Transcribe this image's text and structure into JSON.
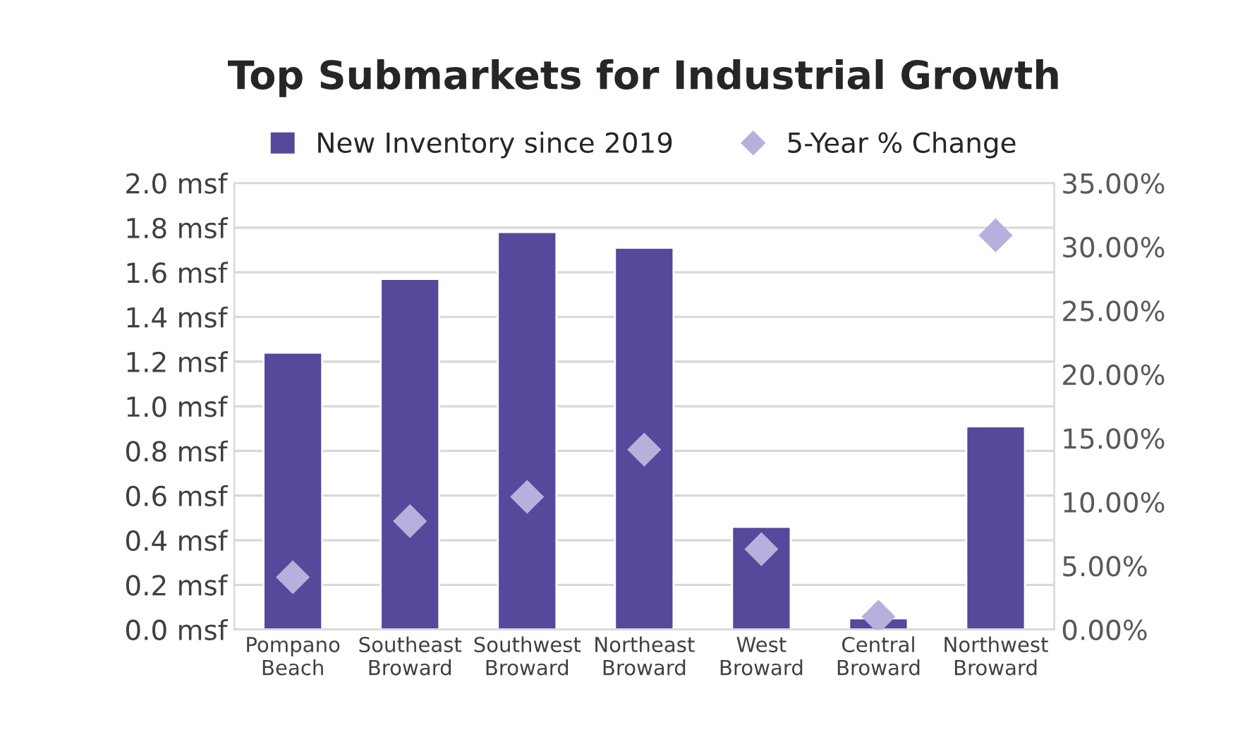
{
  "chart_data": {
    "type": "bar",
    "title": "Top Submarkets for Industrial Growth",
    "categories": [
      "Pompano\nBeach",
      "Southeast\nBroward",
      "Southwest\nBroward",
      "Northeast\nBroward",
      "West\nBroward",
      "Central\nBroward",
      "Northwest\nBroward"
    ],
    "series": [
      {
        "name": "New Inventory since 2019",
        "color": "#55499c",
        "values": [
          1.24,
          1.57,
          1.78,
          1.71,
          0.46,
          0.05,
          0.91
        ]
      },
      {
        "name": "5-Year % Change",
        "type": "scatter",
        "axis": "y2",
        "marker": "diamond",
        "color": "#b8b0dc",
        "values": [
          4.1,
          8.5,
          10.4,
          14.1,
          6.3,
          1.0,
          30.9
        ]
      }
    ],
    "ylim": [
      0,
      2
    ],
    "yticks": [
      {
        "value": 0,
        "label": "0.0 msf"
      },
      {
        "value": 0.2,
        "label": "0.2 msf"
      },
      {
        "value": 0.4,
        "label": "0.4 msf"
      },
      {
        "value": 0.6,
        "label": "0.6 msf"
      },
      {
        "value": 0.8,
        "label": "0.8 msf"
      },
      {
        "value": 1.0,
        "label": "1.0 msf"
      },
      {
        "value": 1.2,
        "label": "1.2 msf"
      },
      {
        "value": 1.4,
        "label": "1.4 msf"
      },
      {
        "value": 1.6,
        "label": "1.6 msf"
      },
      {
        "value": 1.8,
        "label": "1.8 msf"
      },
      {
        "value": 2.0,
        "label": "2.0 msf"
      }
    ],
    "y2lim": [
      0,
      35
    ],
    "y2ticks": [
      {
        "value": 0,
        "label": "0.00%"
      },
      {
        "value": 5,
        "label": "5.00%"
      },
      {
        "value": 10,
        "label": "10.00%"
      },
      {
        "value": 15,
        "label": "15.00%"
      },
      {
        "value": 20,
        "label": "20.00%"
      },
      {
        "value": 25,
        "label": "25.00%"
      },
      {
        "value": 30,
        "label": "30.00%"
      },
      {
        "value": 35,
        "label": "35.00%"
      }
    ],
    "grid": "y",
    "legend": "top"
  }
}
